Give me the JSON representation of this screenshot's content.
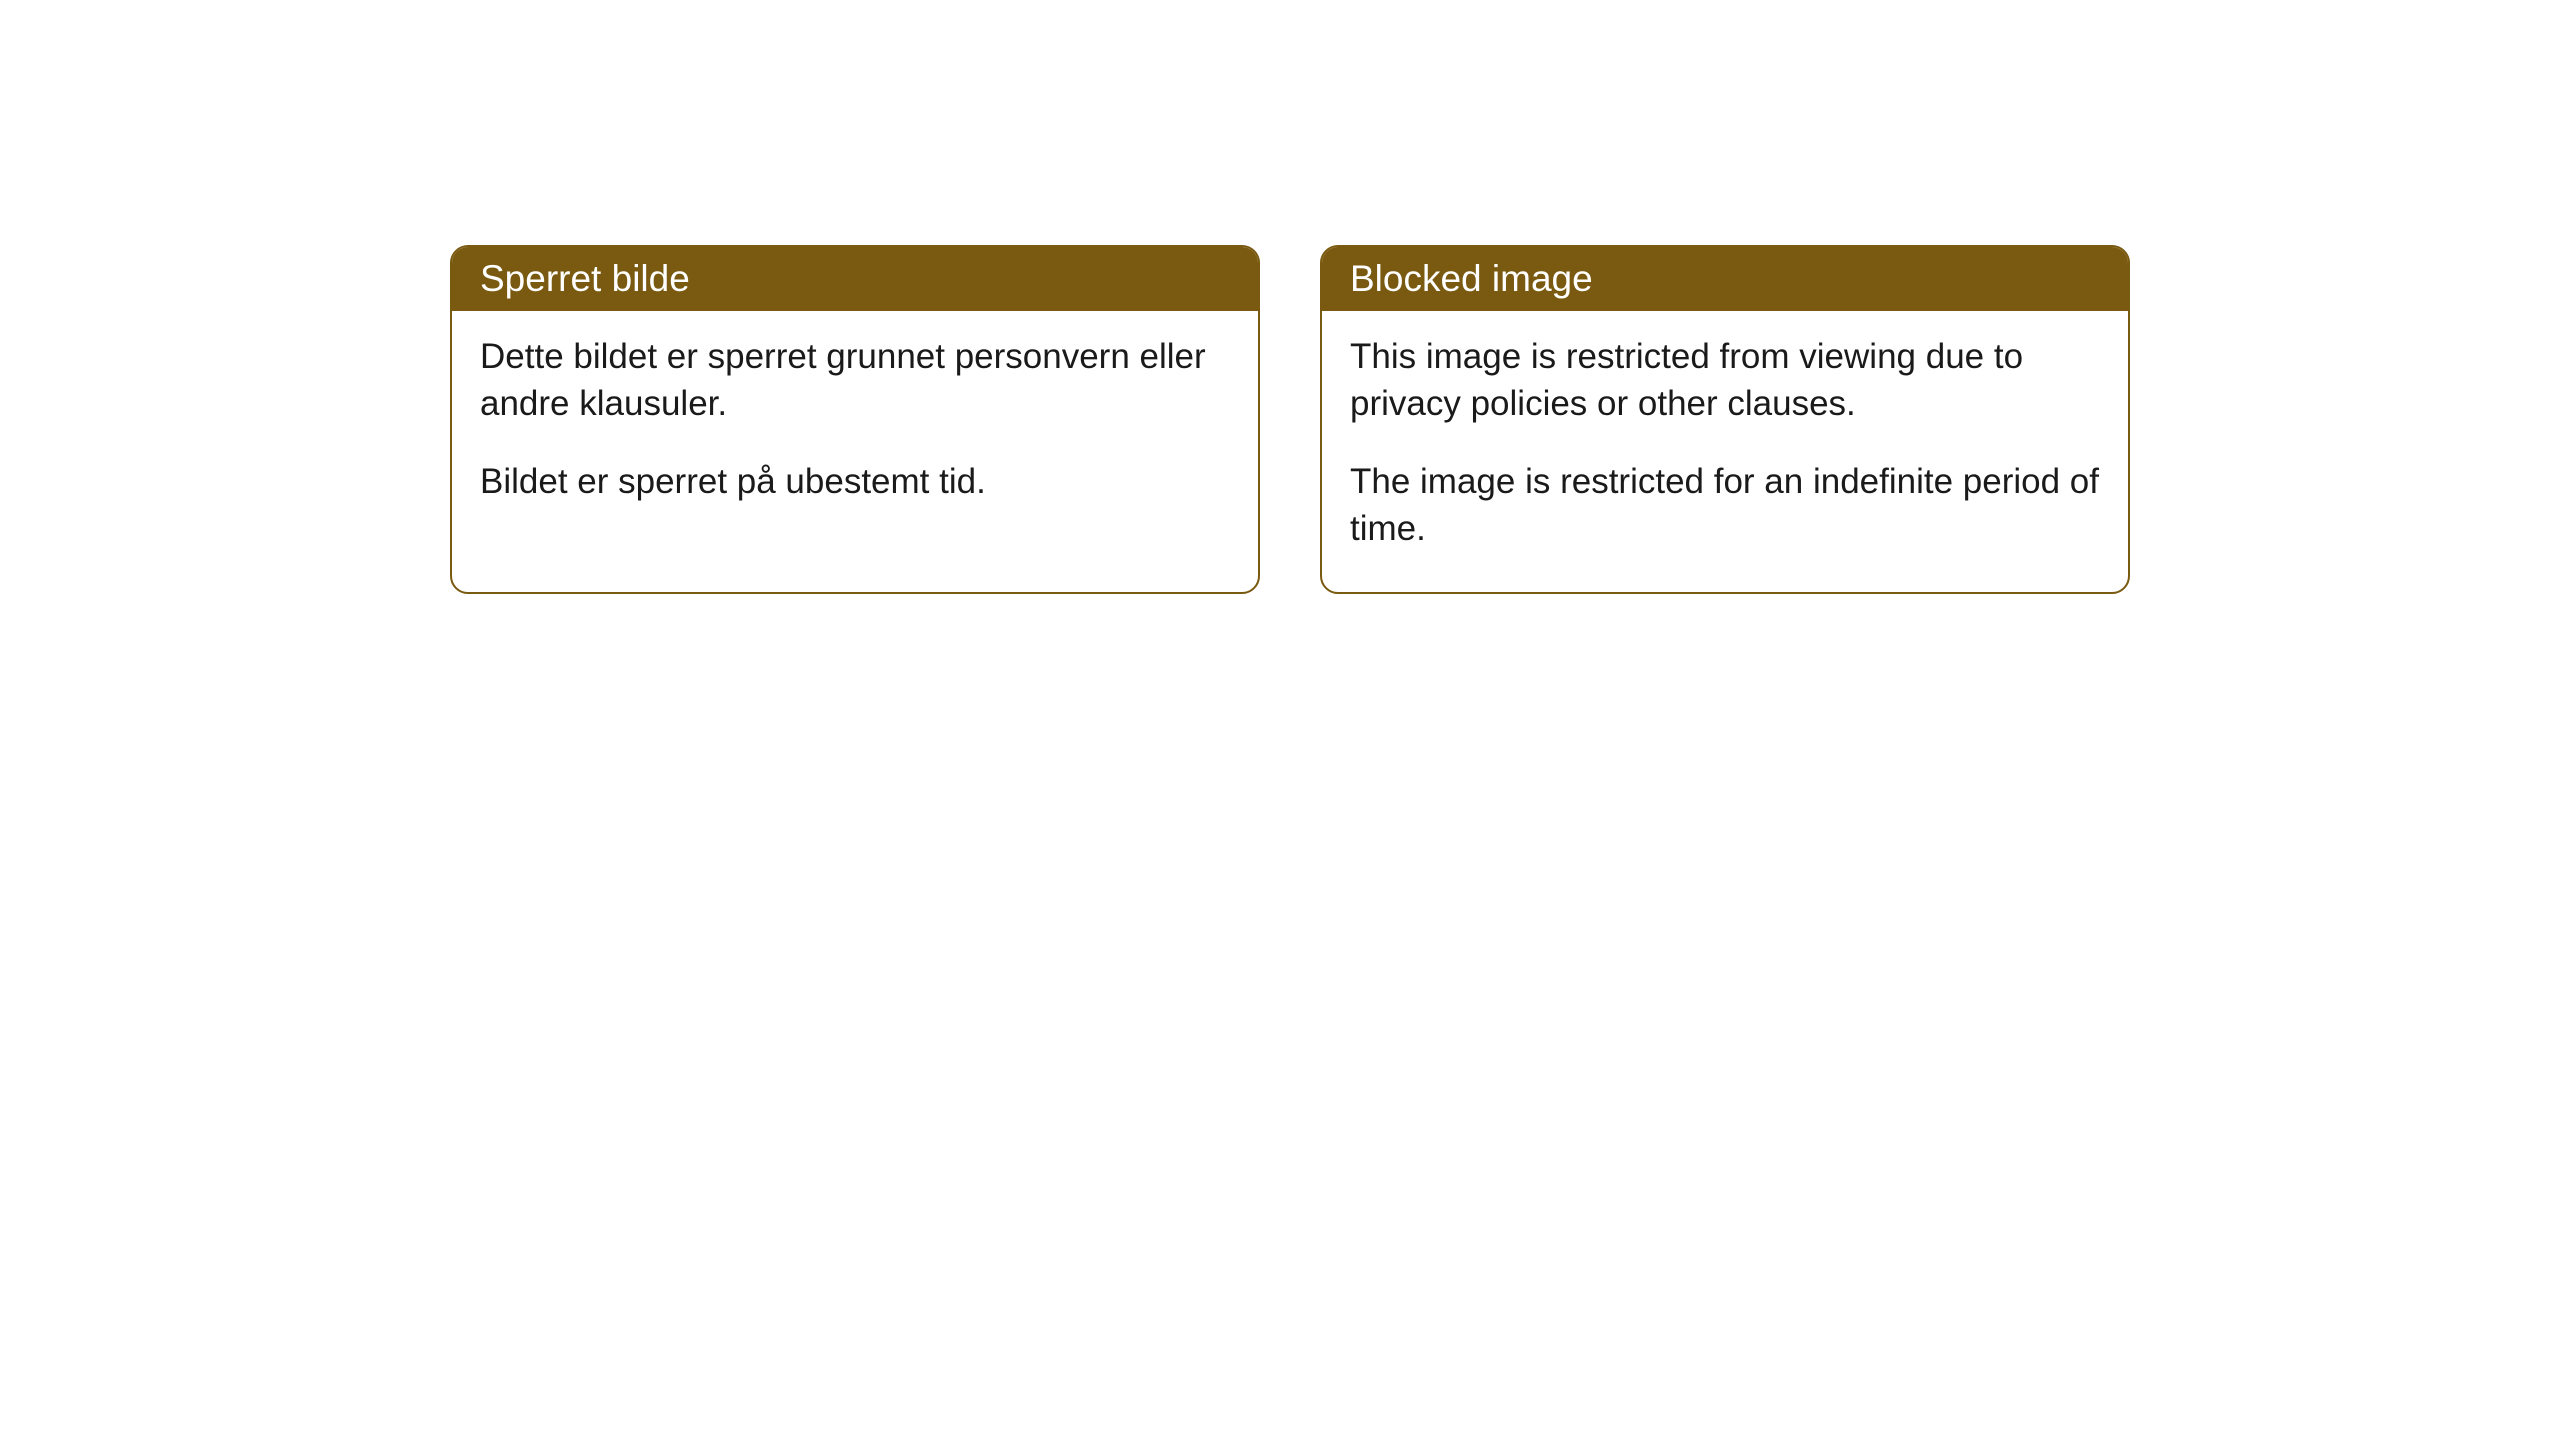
{
  "cards": {
    "left": {
      "title": "Sperret bilde",
      "paragraph1": "Dette bildet er sperret grunnet personvern eller andre klausuler.",
      "paragraph2": "Bildet er sperret på ubestemt tid."
    },
    "right": {
      "title": "Blocked image",
      "paragraph1": "This image is restricted from viewing due to privacy policies or other clauses.",
      "paragraph2": "The image is restricted for an indefinite period of time."
    }
  },
  "styling": {
    "header_background": "#7a5a10",
    "header_text_color": "#ffffff",
    "border_color": "#7a5a10",
    "body_text_color": "#1a1a1a",
    "background_color": "#ffffff",
    "border_radius": 18,
    "title_fontsize": 37,
    "body_fontsize": 35
  }
}
